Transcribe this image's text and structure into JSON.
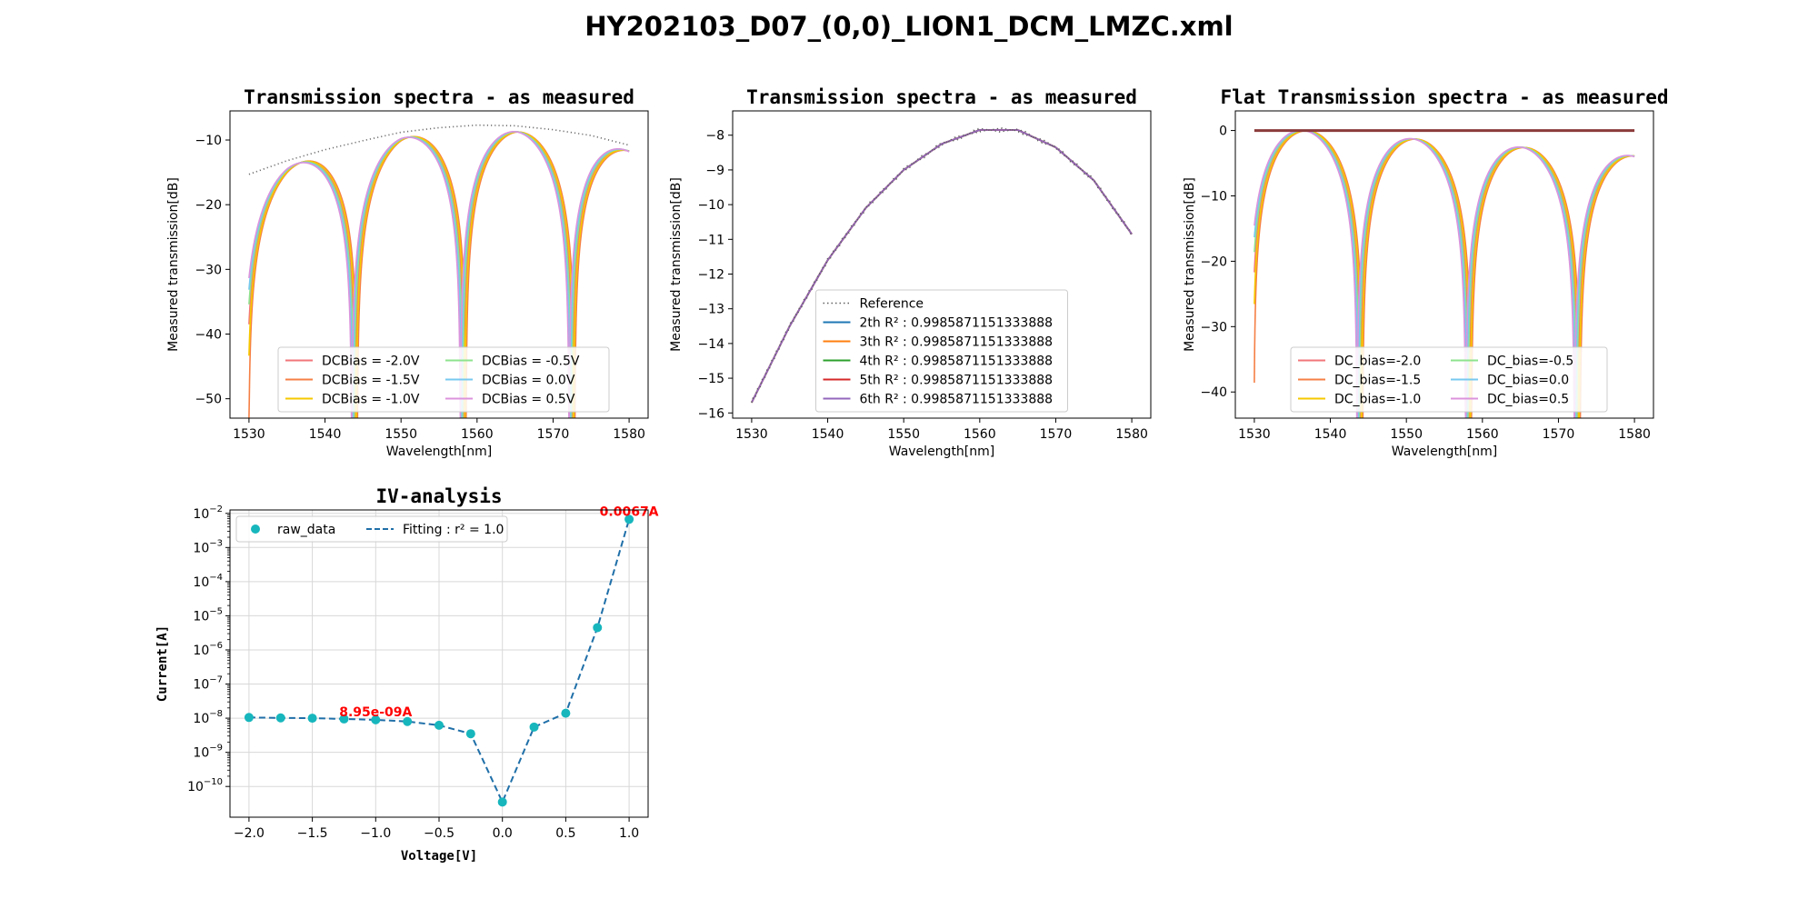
{
  "figure": {
    "title": "HY202103_D07_(0,0)_LION1_DCM_LMZC.xml"
  },
  "chart_data": [
    {
      "type": "line",
      "title": "Transmission spectra - as measured",
      "xlabel": "Wavelength[nm]",
      "ylabel": "Measured transmission[dB]",
      "xlim": [
        1527.5,
        1582.5
      ],
      "ylim": [
        -53,
        -5.5
      ],
      "xticks": [
        1530,
        1540,
        1550,
        1560,
        1570,
        1580
      ],
      "yticks": [
        -10,
        -20,
        -30,
        -40,
        -50
      ],
      "grid": false,
      "legend_position": "lower-center",
      "legend_columns": 2,
      "reference": {
        "name": "",
        "style": "dotted",
        "color": "#707070",
        "x": [
          1530,
          1535,
          1540,
          1545,
          1550,
          1555,
          1560,
          1565,
          1570,
          1575,
          1580
        ],
        "y": [
          -15.3,
          -13.2,
          -11.5,
          -10.1,
          -8.8,
          -8.1,
          -7.7,
          -7.8,
          -8.4,
          -9.3,
          -10.8
        ]
      },
      "fringe": {
        "min_wavelengths": [
          1536.5,
          1550.8,
          1565.1,
          1579.5
        ],
        "period_nm": 14.3,
        "floor_db": -53
      },
      "series": [
        {
          "name": "DCBias = -2.0V",
          "color": "#f2767a",
          "shift_nm": 0.3
        },
        {
          "name": "DCBias = -1.5V",
          "color": "#f57f45",
          "shift_nm": 0.6
        },
        {
          "name": "DCBias = -1.0V",
          "color": "#f6c900",
          "shift_nm": 0.45
        },
        {
          "name": "DCBias = -0.5V",
          "color": "#8ee38e",
          "shift_nm": 0.15
        },
        {
          "name": "DCBias = 0.0V",
          "color": "#77c8ef",
          "shift_nm": 0.0
        },
        {
          "name": "DCBias = 0.5V",
          "color": "#dc93dc",
          "shift_nm": -0.15
        }
      ]
    },
    {
      "type": "line",
      "title": "Transmission spectra - as measured",
      "xlabel": "Wavelength[nm]",
      "ylabel": "Measured transmission[dB]",
      "xlim": [
        1527.5,
        1582.5
      ],
      "ylim": [
        -16.15,
        -7.3
      ],
      "xticks": [
        1530,
        1540,
        1550,
        1560,
        1570,
        1580
      ],
      "yticks": [
        -8,
        -9,
        -10,
        -11,
        -12,
        -13,
        -14,
        -15,
        -16
      ],
      "grid": false,
      "legend_position": "lower-center",
      "legend_columns": 1,
      "reference": {
        "name": "Reference",
        "style": "dotted",
        "color": "#606060",
        "x": [
          1530,
          1535,
          1540,
          1545,
          1550,
          1555,
          1560,
          1565,
          1570,
          1575,
          1580
        ],
        "y": [
          -15.7,
          -13.5,
          -11.6,
          -10.1,
          -9.0,
          -8.25,
          -7.85,
          -7.85,
          -8.35,
          -9.3,
          -10.85
        ]
      },
      "series": [
        {
          "name": "2th R² : 0.9985871151333888",
          "color": "#1f77b4",
          "x": [
            1530,
            1535,
            1540,
            1545,
            1550,
            1555,
            1560,
            1565,
            1570,
            1575,
            1580
          ],
          "y": [
            -15.7,
            -13.5,
            -11.6,
            -10.1,
            -9.0,
            -8.25,
            -7.85,
            -7.85,
            -8.35,
            -9.3,
            -10.85
          ]
        },
        {
          "name": "3th R² : 0.9985871151333888",
          "color": "#ff7f0e",
          "x": [
            1530,
            1535,
            1540,
            1545,
            1550,
            1555,
            1560,
            1565,
            1570,
            1575,
            1580
          ],
          "y": [
            -15.7,
            -13.5,
            -11.6,
            -10.1,
            -9.0,
            -8.25,
            -7.85,
            -7.85,
            -8.35,
            -9.3,
            -10.85
          ]
        },
        {
          "name": "4th R² : 0.9985871151333888",
          "color": "#2ca02c",
          "x": [
            1530,
            1535,
            1540,
            1545,
            1550,
            1555,
            1560,
            1565,
            1570,
            1575,
            1580
          ],
          "y": [
            -15.7,
            -13.5,
            -11.6,
            -10.1,
            -9.0,
            -8.25,
            -7.85,
            -7.85,
            -8.35,
            -9.3,
            -10.85
          ]
        },
        {
          "name": "5th R² : 0.9985871151333888",
          "color": "#d62728",
          "x": [
            1530,
            1535,
            1540,
            1545,
            1550,
            1555,
            1560,
            1565,
            1570,
            1575,
            1580
          ],
          "y": [
            -15.7,
            -13.5,
            -11.6,
            -10.1,
            -9.0,
            -8.25,
            -7.85,
            -7.85,
            -8.35,
            -9.3,
            -10.85
          ]
        },
        {
          "name": "6th R² : 0.9985871151333888",
          "color": "#9467bd",
          "x": [
            1530,
            1535,
            1540,
            1545,
            1550,
            1555,
            1560,
            1565,
            1570,
            1575,
            1580
          ],
          "y": [
            -15.7,
            -13.5,
            -11.6,
            -10.1,
            -9.0,
            -8.25,
            -7.85,
            -7.85,
            -8.35,
            -9.3,
            -10.85
          ]
        }
      ]
    },
    {
      "type": "line",
      "title": "Flat Transmission spectra - as measured",
      "xlabel": "Wavelength[nm]",
      "ylabel": "Measured transmission[dB]",
      "xlim": [
        1527.5,
        1582.5
      ],
      "ylim": [
        -44,
        3
      ],
      "xticks": [
        1530,
        1540,
        1550,
        1560,
        1570,
        1580
      ],
      "yticks": [
        0,
        -10,
        -20,
        -30,
        -40
      ],
      "grid": false,
      "legend_position": "lower-center",
      "legend_columns": 2,
      "reference": {
        "name": "",
        "style": "solid",
        "color": "#8b3a3a",
        "x": [
          1530,
          1580
        ],
        "y": [
          0,
          0
        ]
      },
      "fringe": {
        "min_wavelengths": [
          1536.5,
          1550.8,
          1565.1,
          1579.5
        ],
        "period_nm": 14.3,
        "floor_db": -44
      },
      "series": [
        {
          "name": "DC_bias=-2.0",
          "color": "#f2767a",
          "shift_nm": 0.3
        },
        {
          "name": "DC_bias=-1.5",
          "color": "#f57f45",
          "shift_nm": 0.6
        },
        {
          "name": "DC_bias=-1.0",
          "color": "#f6c900",
          "shift_nm": 0.45
        },
        {
          "name": "DC_bias=-0.5",
          "color": "#8ee38e",
          "shift_nm": 0.15
        },
        {
          "name": "DC_bias=0.0",
          "color": "#77c8ef",
          "shift_nm": 0.0
        },
        {
          "name": "DC_bias=0.5",
          "color": "#dc93dc",
          "shift_nm": -0.15
        }
      ]
    },
    {
      "type": "scatter",
      "title": "IV-analysis",
      "xlabel": "Voltage[V]",
      "ylabel": "Current[A]",
      "y_scale": "log",
      "xlim": [
        -2.15,
        1.15
      ],
      "ylim_exp": [
        -10.9,
        -1.9
      ],
      "xticks": [
        -2.0,
        -1.5,
        -1.0,
        -0.5,
        0.0,
        0.5,
        1.0
      ],
      "xtick_labels": [
        "−2.0",
        "−1.5",
        "−1.0",
        "−0.5",
        "0.0",
        "0.5",
        "1.0"
      ],
      "yticks_exp": [
        -10,
        -9,
        -8,
        -7,
        -6,
        -5,
        -4,
        -3,
        -2
      ],
      "grid": true,
      "legend_position": "upper-left",
      "raw": {
        "name": "raw_data",
        "color": "#17b6bd",
        "x": [
          -2.0,
          -1.75,
          -1.5,
          -1.25,
          -1.0,
          -0.75,
          -0.5,
          -0.25,
          0.0,
          0.25,
          0.5,
          0.75,
          1.0
        ],
        "y": [
          1.05e-08,
          1.02e-08,
          1e-08,
          9.5e-09,
          8.95e-09,
          8e-09,
          6.2e-09,
          3.5e-09,
          3.5e-11,
          5.5e-09,
          1.4e-08,
          4.5e-06,
          0.0067
        ]
      },
      "fit": {
        "name": "Fitting : r² = 1.0",
        "color": "#1f6fa8",
        "style": "dashed"
      },
      "annotations": [
        {
          "text": "8.95e-09A",
          "x": -1.0,
          "y": 8.95e-09,
          "color": "#ff0000"
        },
        {
          "text": "0.0067A",
          "x": 1.0,
          "y": 0.0067,
          "color": "#ff0000"
        }
      ]
    }
  ]
}
